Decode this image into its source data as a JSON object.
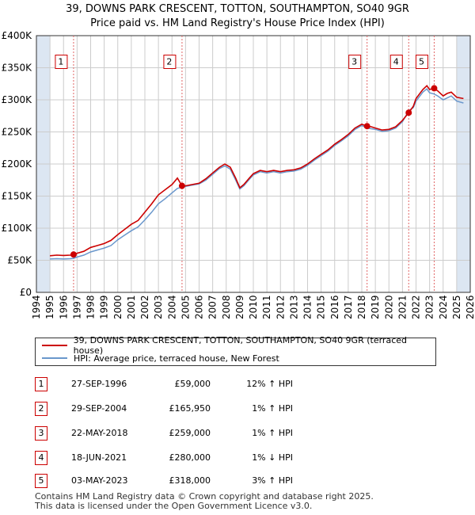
{
  "title_line1": "39, DOWNS PARK CRESCENT, TOTTON, SOUTHAMPTON, SO40 9GR",
  "title_line2": "Price paid vs. HM Land Registry's House Price Index (HPI)",
  "colors": {
    "property": "#cc0000",
    "hpi": "#6a97cc",
    "shade": "#dce6f2",
    "grid": "#cccccc",
    "marker_line": "#e06666"
  },
  "chart_data": {
    "type": "line",
    "ylim": [
      0,
      400000
    ],
    "xlim": [
      1994.0,
      2026.0
    ],
    "y_ticks": [
      {
        "value": 0,
        "label": "£0"
      },
      {
        "value": 50000,
        "label": "£50K"
      },
      {
        "value": 100000,
        "label": "£100K"
      },
      {
        "value": 150000,
        "label": "£150K"
      },
      {
        "value": 200000,
        "label": "£200K"
      },
      {
        "value": 250000,
        "label": "£250K"
      },
      {
        "value": 300000,
        "label": "£300K"
      },
      {
        "value": 350000,
        "label": "£350K"
      },
      {
        "value": 400000,
        "label": "£400K"
      }
    ],
    "x_ticks": [
      "1994",
      "1995",
      "1996",
      "1997",
      "1998",
      "1999",
      "2000",
      "2001",
      "2002",
      "2003",
      "2004",
      "2005",
      "2006",
      "2007",
      "2008",
      "2009",
      "2010",
      "2011",
      "2012",
      "2013",
      "2014",
      "2015",
      "2016",
      "2017",
      "2018",
      "2019",
      "2020",
      "2021",
      "2022",
      "2023",
      "2024",
      "2025",
      "2026"
    ],
    "series": [
      {
        "name": "39, DOWNS PARK CRESCENT, TOTTON, SOUTHAMPTON, SO40 9GR (terraced house)",
        "points": [
          [
            1995.0,
            57000
          ],
          [
            1995.5,
            58000
          ],
          [
            1996.0,
            57500
          ],
          [
            1996.5,
            58000
          ],
          [
            1996.74,
            59000
          ],
          [
            1997.0,
            61000
          ],
          [
            1997.5,
            64000
          ],
          [
            1998.0,
            70000
          ],
          [
            1998.5,
            73000
          ],
          [
            1999.0,
            76000
          ],
          [
            1999.5,
            81000
          ],
          [
            2000.0,
            90000
          ],
          [
            2000.5,
            98000
          ],
          [
            2001.0,
            106000
          ],
          [
            2001.5,
            112000
          ],
          [
            2002.0,
            125000
          ],
          [
            2002.5,
            138000
          ],
          [
            2003.0,
            152000
          ],
          [
            2003.5,
            160000
          ],
          [
            2004.0,
            168000
          ],
          [
            2004.4,
            178000
          ],
          [
            2004.74,
            165950
          ],
          [
            2005.0,
            166000
          ],
          [
            2005.5,
            168000
          ],
          [
            2006.0,
            170000
          ],
          [
            2006.5,
            177000
          ],
          [
            2007.0,
            186000
          ],
          [
            2007.5,
            195000
          ],
          [
            2007.9,
            200000
          ],
          [
            2008.3,
            195000
          ],
          [
            2008.7,
            178000
          ],
          [
            2009.0,
            163000
          ],
          [
            2009.3,
            168000
          ],
          [
            2009.7,
            178000
          ],
          [
            2010.0,
            185000
          ],
          [
            2010.5,
            190000
          ],
          [
            2011.0,
            188000
          ],
          [
            2011.5,
            190000
          ],
          [
            2012.0,
            188000
          ],
          [
            2012.5,
            190000
          ],
          [
            2013.0,
            191000
          ],
          [
            2013.5,
            194000
          ],
          [
            2014.0,
            200000
          ],
          [
            2014.5,
            208000
          ],
          [
            2015.0,
            215000
          ],
          [
            2015.5,
            222000
          ],
          [
            2016.0,
            231000
          ],
          [
            2016.5,
            238000
          ],
          [
            2017.0,
            246000
          ],
          [
            2017.5,
            256000
          ],
          [
            2018.0,
            262000
          ],
          [
            2018.39,
            259000
          ],
          [
            2018.7,
            258000
          ],
          [
            2019.0,
            256000
          ],
          [
            2019.5,
            253000
          ],
          [
            2020.0,
            254000
          ],
          [
            2020.5,
            258000
          ],
          [
            2021.0,
            268000
          ],
          [
            2021.46,
            280000
          ],
          [
            2021.8,
            290000
          ],
          [
            2022.0,
            302000
          ],
          [
            2022.5,
            316000
          ],
          [
            2022.8,
            322000
          ],
          [
            2023.0,
            316000
          ],
          [
            2023.34,
            318000
          ],
          [
            2023.6,
            314000
          ],
          [
            2024.0,
            306000
          ],
          [
            2024.3,
            310000
          ],
          [
            2024.6,
            312000
          ],
          [
            2025.0,
            304000
          ],
          [
            2025.5,
            302000
          ]
        ]
      },
      {
        "name": "HPI: Average price, terraced house, New Forest",
        "points": [
          [
            1995.0,
            52000
          ],
          [
            1995.5,
            52500
          ],
          [
            1996.0,
            52000
          ],
          [
            1996.5,
            52500
          ],
          [
            1996.74,
            53000
          ],
          [
            1997.0,
            55000
          ],
          [
            1997.5,
            58000
          ],
          [
            1998.0,
            63000
          ],
          [
            1998.5,
            66000
          ],
          [
            1999.0,
            69000
          ],
          [
            1999.5,
            73000
          ],
          [
            2000.0,
            82000
          ],
          [
            2000.5,
            89000
          ],
          [
            2001.0,
            96000
          ],
          [
            2001.5,
            102000
          ],
          [
            2002.0,
            113000
          ],
          [
            2002.5,
            125000
          ],
          [
            2003.0,
            138000
          ],
          [
            2003.5,
            146000
          ],
          [
            2004.0,
            155000
          ],
          [
            2004.4,
            162000
          ],
          [
            2004.74,
            164000
          ],
          [
            2005.0,
            165000
          ],
          [
            2005.5,
            167000
          ],
          [
            2006.0,
            169000
          ],
          [
            2006.5,
            175000
          ],
          [
            2007.0,
            184000
          ],
          [
            2007.5,
            193000
          ],
          [
            2007.9,
            197000
          ],
          [
            2008.3,
            192000
          ],
          [
            2008.7,
            175000
          ],
          [
            2009.0,
            161000
          ],
          [
            2009.3,
            166000
          ],
          [
            2009.7,
            176000
          ],
          [
            2010.0,
            183000
          ],
          [
            2010.5,
            188000
          ],
          [
            2011.0,
            186000
          ],
          [
            2011.5,
            188000
          ],
          [
            2012.0,
            186000
          ],
          [
            2012.5,
            188000
          ],
          [
            2013.0,
            189000
          ],
          [
            2013.5,
            192000
          ],
          [
            2014.0,
            198000
          ],
          [
            2014.5,
            206000
          ],
          [
            2015.0,
            213000
          ],
          [
            2015.5,
            220000
          ],
          [
            2016.0,
            229000
          ],
          [
            2016.5,
            236000
          ],
          [
            2017.0,
            244000
          ],
          [
            2017.5,
            254000
          ],
          [
            2018.0,
            260000
          ],
          [
            2018.39,
            256000
          ],
          [
            2018.7,
            255000
          ],
          [
            2019.0,
            254000
          ],
          [
            2019.5,
            251000
          ],
          [
            2020.0,
            252000
          ],
          [
            2020.5,
            256000
          ],
          [
            2021.0,
            266000
          ],
          [
            2021.46,
            283000
          ],
          [
            2021.8,
            288000
          ],
          [
            2022.0,
            298000
          ],
          [
            2022.5,
            312000
          ],
          [
            2022.8,
            317000
          ],
          [
            2023.0,
            311000
          ],
          [
            2023.34,
            309000
          ],
          [
            2023.6,
            306000
          ],
          [
            2024.0,
            300000
          ],
          [
            2024.3,
            303000
          ],
          [
            2024.6,
            306000
          ],
          [
            2025.0,
            298000
          ],
          [
            2025.5,
            295000
          ]
        ]
      }
    ],
    "sales": [
      {
        "n": "1",
        "x": 1996.74,
        "price": 59000
      },
      {
        "n": "2",
        "x": 2004.74,
        "price": 165950
      },
      {
        "n": "3",
        "x": 2018.39,
        "price": 259000
      },
      {
        "n": "4",
        "x": 2021.46,
        "price": 280000
      },
      {
        "n": "5",
        "x": 2023.34,
        "price": 318000
      }
    ],
    "shaded_ranges": [
      [
        1994.0,
        1995.0
      ],
      [
        2025.0,
        2026.0
      ]
    ]
  },
  "legend": {
    "property_label": "39, DOWNS PARK CRESCENT, TOTTON, SOUTHAMPTON, SO40 9GR (terraced house)",
    "hpi_label": "HPI: Average price, terraced house, New Forest"
  },
  "table": [
    {
      "n": "1",
      "date": "27-SEP-1996",
      "price": "£59,000",
      "hpi": "12% ↑ HPI"
    },
    {
      "n": "2",
      "date": "29-SEP-2004",
      "price": "£165,950",
      "hpi": "1% ↑ HPI"
    },
    {
      "n": "3",
      "date": "22-MAY-2018",
      "price": "£259,000",
      "hpi": "1% ↑ HPI"
    },
    {
      "n": "4",
      "date": "18-JUN-2021",
      "price": "£280,000",
      "hpi": "1% ↓ HPI"
    },
    {
      "n": "5",
      "date": "03-MAY-2023",
      "price": "£318,000",
      "hpi": "3% ↑ HPI"
    }
  ],
  "footer_line1": "Contains HM Land Registry data © Crown copyright and database right 2025.",
  "footer_line2": "This data is licensed under the Open Government Licence v3.0."
}
